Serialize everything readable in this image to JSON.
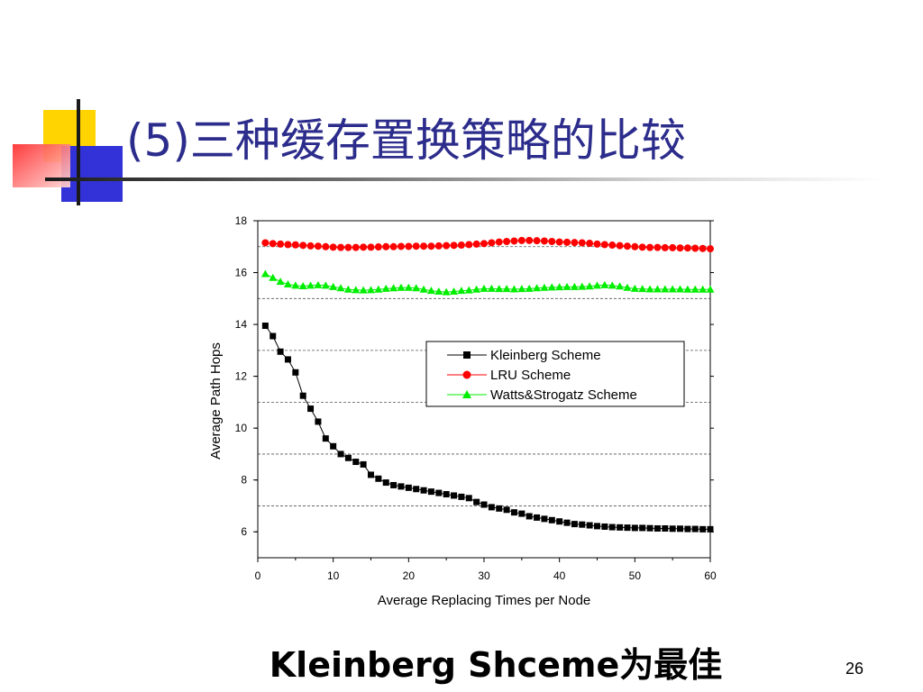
{
  "slide": {
    "title": "(5)三种缓存置换策略的比较",
    "conclusion": "Kleinberg Shceme为最佳",
    "page_number": "26"
  },
  "colors": {
    "title_text": "#2c2c8c",
    "kleinberg": "#000000",
    "lru": "#ff0000",
    "watts": "#00ee00"
  },
  "chart_data": {
    "type": "line",
    "xlabel": "Average Replacing Times per Node",
    "ylabel": "Average Path Hops",
    "xlim": [
      0,
      60
    ],
    "ylim": [
      5,
      18
    ],
    "xticks": [
      0,
      10,
      20,
      30,
      40,
      50,
      60
    ],
    "yticks": [
      6,
      8,
      10,
      12,
      14,
      16,
      18
    ],
    "grid": "horizontal dashed",
    "legend_position": "center-right",
    "x": [
      1,
      2,
      3,
      4,
      5,
      6,
      7,
      8,
      9,
      10,
      11,
      12,
      13,
      14,
      15,
      16,
      17,
      18,
      19,
      20,
      21,
      22,
      23,
      24,
      25,
      26,
      27,
      28,
      29,
      30,
      31,
      32,
      33,
      34,
      35,
      36,
      37,
      38,
      39,
      40,
      41,
      42,
      43,
      44,
      45,
      46,
      47,
      48,
      49,
      50,
      51,
      52,
      53,
      54,
      55,
      56,
      57,
      58,
      59,
      60
    ],
    "series": [
      {
        "name": "Kleinberg Scheme",
        "marker": "square",
        "color": "#000000",
        "values": [
          13.95,
          13.55,
          12.95,
          12.65,
          12.15,
          11.25,
          10.75,
          10.25,
          9.6,
          9.3,
          9.0,
          8.85,
          8.7,
          8.6,
          8.2,
          8.05,
          7.9,
          7.8,
          7.75,
          7.7,
          7.65,
          7.6,
          7.55,
          7.5,
          7.45,
          7.4,
          7.35,
          7.3,
          7.15,
          7.05,
          6.95,
          6.9,
          6.85,
          6.75,
          6.7,
          6.6,
          6.55,
          6.5,
          6.45,
          6.4,
          6.35,
          6.3,
          6.28,
          6.25,
          6.22,
          6.2,
          6.18,
          6.17,
          6.16,
          6.15,
          6.15,
          6.14,
          6.13,
          6.13,
          6.12,
          6.12,
          6.11,
          6.11,
          6.1,
          6.1
        ]
      },
      {
        "name": "LRU Scheme",
        "marker": "circle",
        "color": "#ff0000",
        "values": [
          17.15,
          17.12,
          17.1,
          17.08,
          17.07,
          17.05,
          17.03,
          17.02,
          17.0,
          16.98,
          16.97,
          16.97,
          16.97,
          16.98,
          16.98,
          16.99,
          17.0,
          17.0,
          17.01,
          17.01,
          17.02,
          17.02,
          17.02,
          17.03,
          17.04,
          17.05,
          17.06,
          17.08,
          17.1,
          17.12,
          17.15,
          17.18,
          17.2,
          17.22,
          17.24,
          17.24,
          17.23,
          17.22,
          17.2,
          17.18,
          17.17,
          17.16,
          17.15,
          17.13,
          17.1,
          17.08,
          17.06,
          17.04,
          17.02,
          17.0,
          16.98,
          16.97,
          16.97,
          16.96,
          16.96,
          16.95,
          16.95,
          16.94,
          16.93,
          16.92
        ]
      },
      {
        "name": "Watts&Strogatz Scheme",
        "marker": "triangle",
        "color": "#00ee00",
        "values": [
          15.95,
          15.8,
          15.65,
          15.55,
          15.5,
          15.48,
          15.5,
          15.52,
          15.5,
          15.45,
          15.4,
          15.35,
          15.33,
          15.32,
          15.33,
          15.35,
          15.38,
          15.4,
          15.42,
          15.42,
          15.4,
          15.35,
          15.3,
          15.27,
          15.25,
          15.27,
          15.3,
          15.32,
          15.35,
          15.38,
          15.38,
          15.37,
          15.37,
          15.36,
          15.37,
          15.38,
          15.4,
          15.42,
          15.43,
          15.44,
          15.45,
          15.45,
          15.46,
          15.47,
          15.5,
          15.52,
          15.5,
          15.47,
          15.42,
          15.38,
          15.37,
          15.36,
          15.36,
          15.36,
          15.36,
          15.36,
          15.35,
          15.35,
          15.35,
          15.35
        ]
      }
    ]
  }
}
